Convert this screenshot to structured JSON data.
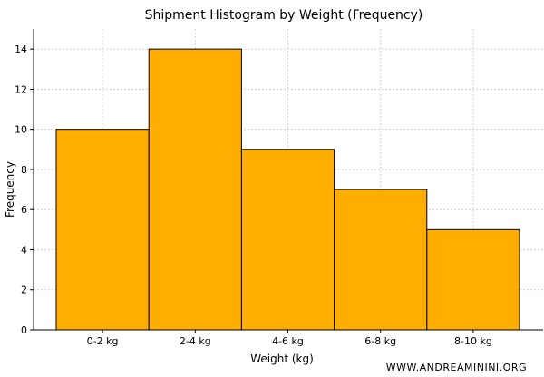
{
  "chart_data": {
    "type": "bar",
    "title": "Shipment Histogram by Weight  (Frequency)",
    "xlabel": "Weight (kg)",
    "ylabel": "Frequency",
    "categories": [
      "0-2 kg",
      "2-4 kg",
      "4-6 kg",
      "6-8 kg",
      "8-10 kg"
    ],
    "values": [
      10,
      14,
      9,
      7,
      5
    ],
    "ylim": [
      0,
      15
    ],
    "yticks": [
      0,
      2,
      4,
      6,
      8,
      10,
      12,
      14
    ],
    "grid": true,
    "bar_color": "#FFAD00",
    "bar_edge_color": "#000000"
  },
  "watermark": "WWW.ANDREAMININI.ORG"
}
